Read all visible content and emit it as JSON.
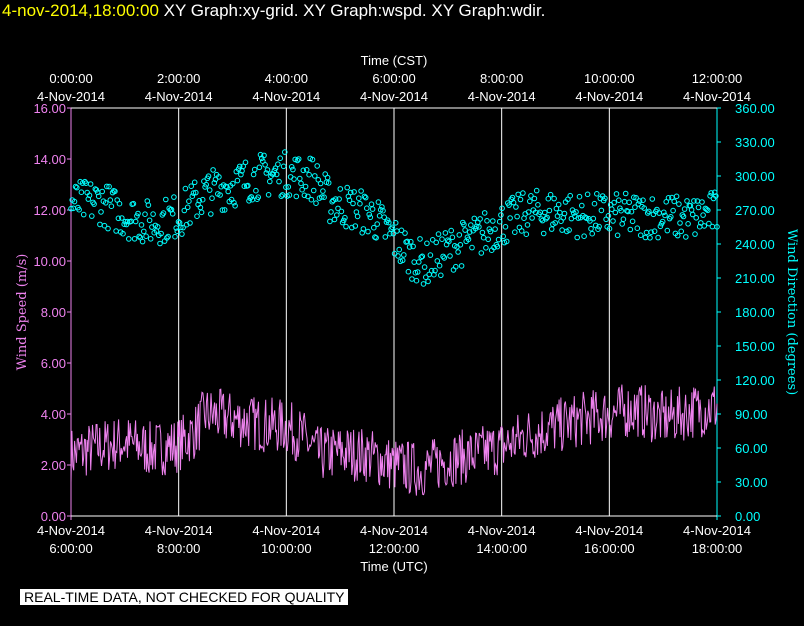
{
  "header": {
    "timestamp": "4-nov-2014,18:00:00",
    "graphs": [
      "XY Graph:xy-grid.",
      "XY Graph:wspd.",
      "XY Graph:wdir."
    ]
  },
  "note": "REAL-TIME DATA, NOT CHECKED FOR QUALITY",
  "colors": {
    "speed": "#ee82ee",
    "direction": "#00ffff",
    "grid": "#ffffff",
    "timestamp": "#ffff00"
  },
  "chart_data": {
    "type": "line",
    "top_axis": {
      "label": "Time (CST)",
      "ticks": [
        {
          "time": "0:00:00",
          "date": "4-Nov-2014"
        },
        {
          "time": "2:00:00",
          "date": "4-Nov-2014"
        },
        {
          "time": "4:00:00",
          "date": "4-Nov-2014"
        },
        {
          "time": "6:00:00",
          "date": "4-Nov-2014"
        },
        {
          "time": "8:00:00",
          "date": "4-Nov-2014"
        },
        {
          "time": "10:00:00",
          "date": "4-Nov-2014"
        },
        {
          "time": "12:00:00",
          "date": "4-Nov-2014"
        }
      ]
    },
    "bottom_axis": {
      "label": "Time (UTC)",
      "ticks": [
        {
          "date": "4-Nov-2014",
          "time": "6:00:00"
        },
        {
          "date": "4-Nov-2014",
          "time": "8:00:00"
        },
        {
          "date": "4-Nov-2014",
          "time": "10:00:00"
        },
        {
          "date": "4-Nov-2014",
          "time": "12:00:00"
        },
        {
          "date": "4-Nov-2014",
          "time": "14:00:00"
        },
        {
          "date": "4-Nov-2014",
          "time": "16:00:00"
        },
        {
          "date": "4-Nov-2014",
          "time": "18:00:00"
        }
      ]
    },
    "x_range_hours_utc": [
      6,
      18
    ],
    "left_axis": {
      "label": "Wind Speed (m/s)",
      "ylim": [
        0,
        16
      ],
      "ticks": [
        "0.00",
        "2.00",
        "4.00",
        "6.00",
        "8.00",
        "10.00",
        "12.00",
        "14.00",
        "16.00"
      ]
    },
    "right_axis": {
      "label": "Wind Direction (degrees)",
      "ylim": [
        0,
        360
      ],
      "ticks": [
        "0.00",
        "30.00",
        "60.00",
        "90.00",
        "120.00",
        "150.00",
        "180.00",
        "210.00",
        "240.00",
        "270.00",
        "300.00",
        "330.00",
        "360.00"
      ]
    },
    "grid": "vertical lines at major x ticks",
    "series": [
      {
        "name": "Wind Speed",
        "style": "line",
        "axis": "left",
        "x_hours_utc": [
          6.0,
          6.5,
          7.0,
          7.5,
          8.0,
          8.3,
          8.5,
          9.0,
          9.5,
          10.0,
          10.3,
          10.6,
          11.0,
          11.5,
          12.0,
          12.5,
          13.0,
          13.5,
          14.0,
          14.5,
          15.0,
          15.5,
          16.0,
          16.5,
          17.0,
          17.5,
          18.0
        ],
        "values": [
          2.4,
          2.7,
          2.9,
          2.6,
          2.8,
          3.3,
          4.0,
          3.8,
          3.6,
          3.5,
          3.1,
          2.4,
          2.5,
          2.4,
          2.0,
          1.8,
          2.2,
          2.4,
          2.7,
          3.2,
          3.5,
          3.8,
          4.0,
          4.2,
          3.8,
          4.1,
          4.3
        ]
      },
      {
        "name": "Wind Direction",
        "style": "circles",
        "axis": "right",
        "x_hours_utc": [
          6.0,
          6.5,
          7.0,
          7.5,
          8.0,
          8.5,
          9.0,
          9.5,
          10.0,
          10.5,
          10.8,
          11.2,
          11.6,
          12.0,
          12.3,
          12.6,
          13.0,
          13.5,
          14.0,
          14.5,
          15.0,
          15.5,
          16.0,
          16.5,
          17.0,
          17.5,
          18.0
        ],
        "values": [
          275,
          278,
          265,
          258,
          265,
          285,
          292,
          300,
          302,
          298,
          278,
          272,
          265,
          245,
          230,
          222,
          235,
          245,
          258,
          268,
          268,
          265,
          265,
          265,
          265,
          262,
          268
        ]
      }
    ]
  }
}
